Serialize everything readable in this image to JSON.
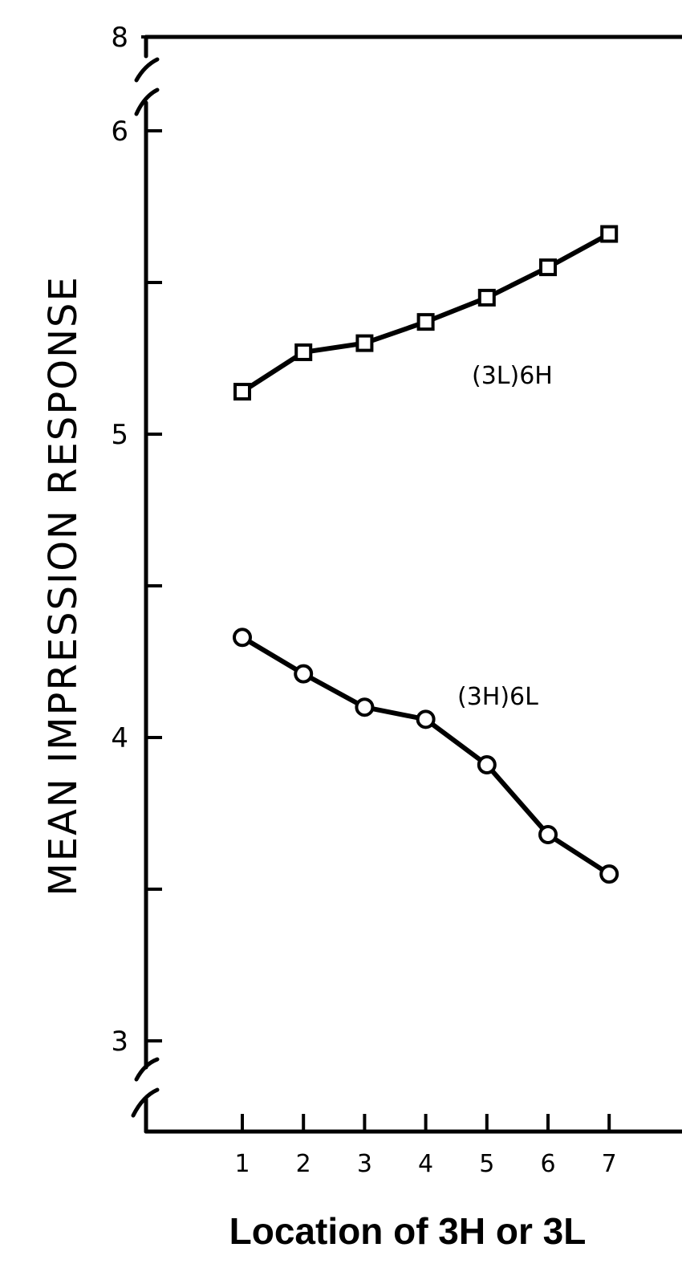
{
  "chart_data": {
    "type": "line",
    "title": "",
    "xlabel": "Location of 3H or 3L",
    "ylabel": "MEAN IMPRESSION RESPONSE",
    "x": [
      1,
      2,
      3,
      4,
      5,
      6,
      7
    ],
    "x_tick_labels": [
      "1",
      "2",
      "3",
      "4",
      "5",
      "6",
      "7"
    ],
    "y_tick_labels": [
      "3",
      "4",
      "5",
      "6",
      "8"
    ],
    "y_ticks": [
      3,
      3.5,
      4,
      4.5,
      5,
      5.5,
      6
    ],
    "ylim": [
      2.9,
      6.2
    ],
    "y_axis_break": true,
    "top_tick_value": 8,
    "grid": false,
    "legend": "inline labels",
    "series": [
      {
        "name": "(3L)6H",
        "marker": "square",
        "values": [
          5.14,
          5.27,
          5.3,
          5.37,
          5.45,
          5.55,
          5.66
        ]
      },
      {
        "name": "(3H)6L",
        "marker": "circle",
        "values": [
          4.33,
          4.21,
          4.1,
          4.06,
          3.91,
          3.68,
          3.55
        ]
      }
    ],
    "colors": {
      "line": "#000000",
      "marker_fill": "#ffffff"
    }
  }
}
